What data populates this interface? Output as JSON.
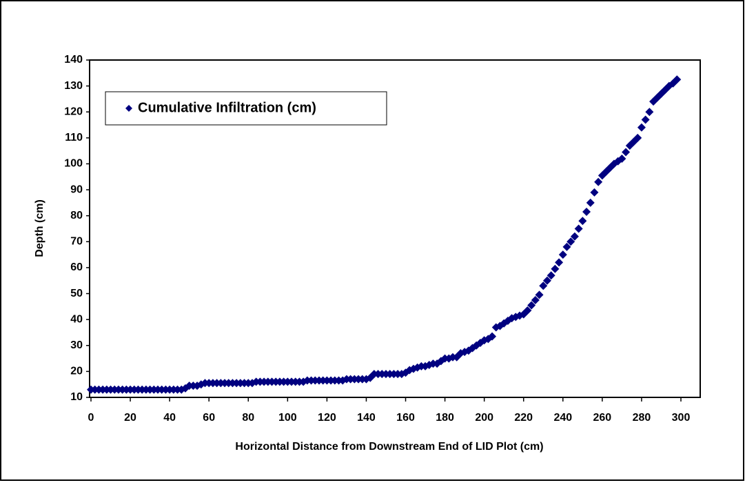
{
  "chart_data": {
    "type": "scatter",
    "x_label": "Horizontal Distance from Downstream End of LID Plot (cm)",
    "y_label": "Depth (cm)",
    "series": [
      {
        "name": "Cumulative Infiltration (cm)",
        "color": "#000080",
        "x": [
          0,
          2,
          4,
          6,
          8,
          10,
          12,
          14,
          16,
          18,
          20,
          22,
          24,
          26,
          28,
          30,
          32,
          34,
          36,
          38,
          40,
          42,
          44,
          46,
          48,
          50,
          52,
          54,
          56,
          58,
          60,
          62,
          64,
          66,
          68,
          70,
          72,
          74,
          76,
          78,
          80,
          82,
          84,
          86,
          88,
          90,
          92,
          94,
          96,
          98,
          100,
          102,
          104,
          106,
          108,
          110,
          112,
          114,
          116,
          118,
          120,
          122,
          124,
          126,
          128,
          130,
          132,
          134,
          136,
          138,
          140,
          142,
          144,
          146,
          148,
          150,
          152,
          154,
          156,
          158,
          160,
          162,
          164,
          166,
          168,
          170,
          172,
          174,
          176,
          178,
          180,
          182,
          184,
          186,
          188,
          190,
          192,
          194,
          196,
          198,
          200,
          202,
          204,
          206,
          208,
          210,
          212,
          214,
          216,
          218,
          220,
          222,
          224,
          226,
          228,
          230,
          232,
          234,
          236,
          238,
          240,
          242,
          244,
          246,
          248,
          250,
          252,
          254,
          256,
          258,
          260,
          262,
          264,
          266,
          268,
          270,
          272,
          274,
          276,
          278,
          280,
          282,
          284,
          286,
          288,
          290,
          292,
          294,
          296,
          298
        ],
        "values": [
          13,
          13,
          13,
          13,
          13,
          13,
          13,
          13,
          13,
          13,
          13,
          13,
          13,
          13,
          13,
          13,
          13,
          13,
          13,
          13,
          13,
          13,
          13,
          13,
          13.5,
          14.5,
          14.5,
          14.5,
          15,
          15.5,
          15.5,
          15.5,
          15.5,
          15.5,
          15.5,
          15.5,
          15.5,
          15.5,
          15.5,
          15.5,
          15.5,
          15.5,
          16,
          16,
          16,
          16,
          16,
          16,
          16,
          16,
          16,
          16,
          16,
          16,
          16,
          16.5,
          16.5,
          16.5,
          16.5,
          16.5,
          16.5,
          16.5,
          16.5,
          16.5,
          16.5,
          17,
          17,
          17,
          17,
          17,
          17,
          17.5,
          19,
          19,
          19,
          19,
          19,
          19,
          19,
          19,
          19.5,
          20.5,
          21,
          21.5,
          22,
          22,
          22.5,
          23,
          23,
          24,
          25,
          25,
          25.5,
          25.5,
          27,
          27.5,
          28,
          29,
          30,
          31,
          32,
          32.5,
          33.5,
          37,
          37.5,
          38.5,
          39.5,
          40.5,
          41,
          41.5,
          42,
          43.5,
          45.5,
          47.5,
          49.5,
          53,
          55,
          57,
          59.5,
          62,
          65,
          68,
          70,
          72,
          75,
          78,
          81.5,
          85,
          89,
          93,
          95.5,
          97,
          98.5,
          100,
          101,
          102,
          104.5,
          107,
          108.5,
          110,
          114,
          117,
          120,
          124,
          125.5,
          127,
          128.5,
          130,
          131,
          132.5
        ]
      }
    ],
    "xlim": [
      0,
      300
    ],
    "xticks": [
      0,
      20,
      40,
      60,
      80,
      100,
      120,
      140,
      160,
      180,
      200,
      220,
      240,
      260,
      280,
      300
    ],
    "ylim": [
      10,
      140
    ],
    "yticks": [
      10,
      20,
      30,
      40,
      50,
      60,
      70,
      80,
      90,
      100,
      110,
      120,
      130,
      140
    ],
    "legend": "upper-left",
    "grid": false
  }
}
